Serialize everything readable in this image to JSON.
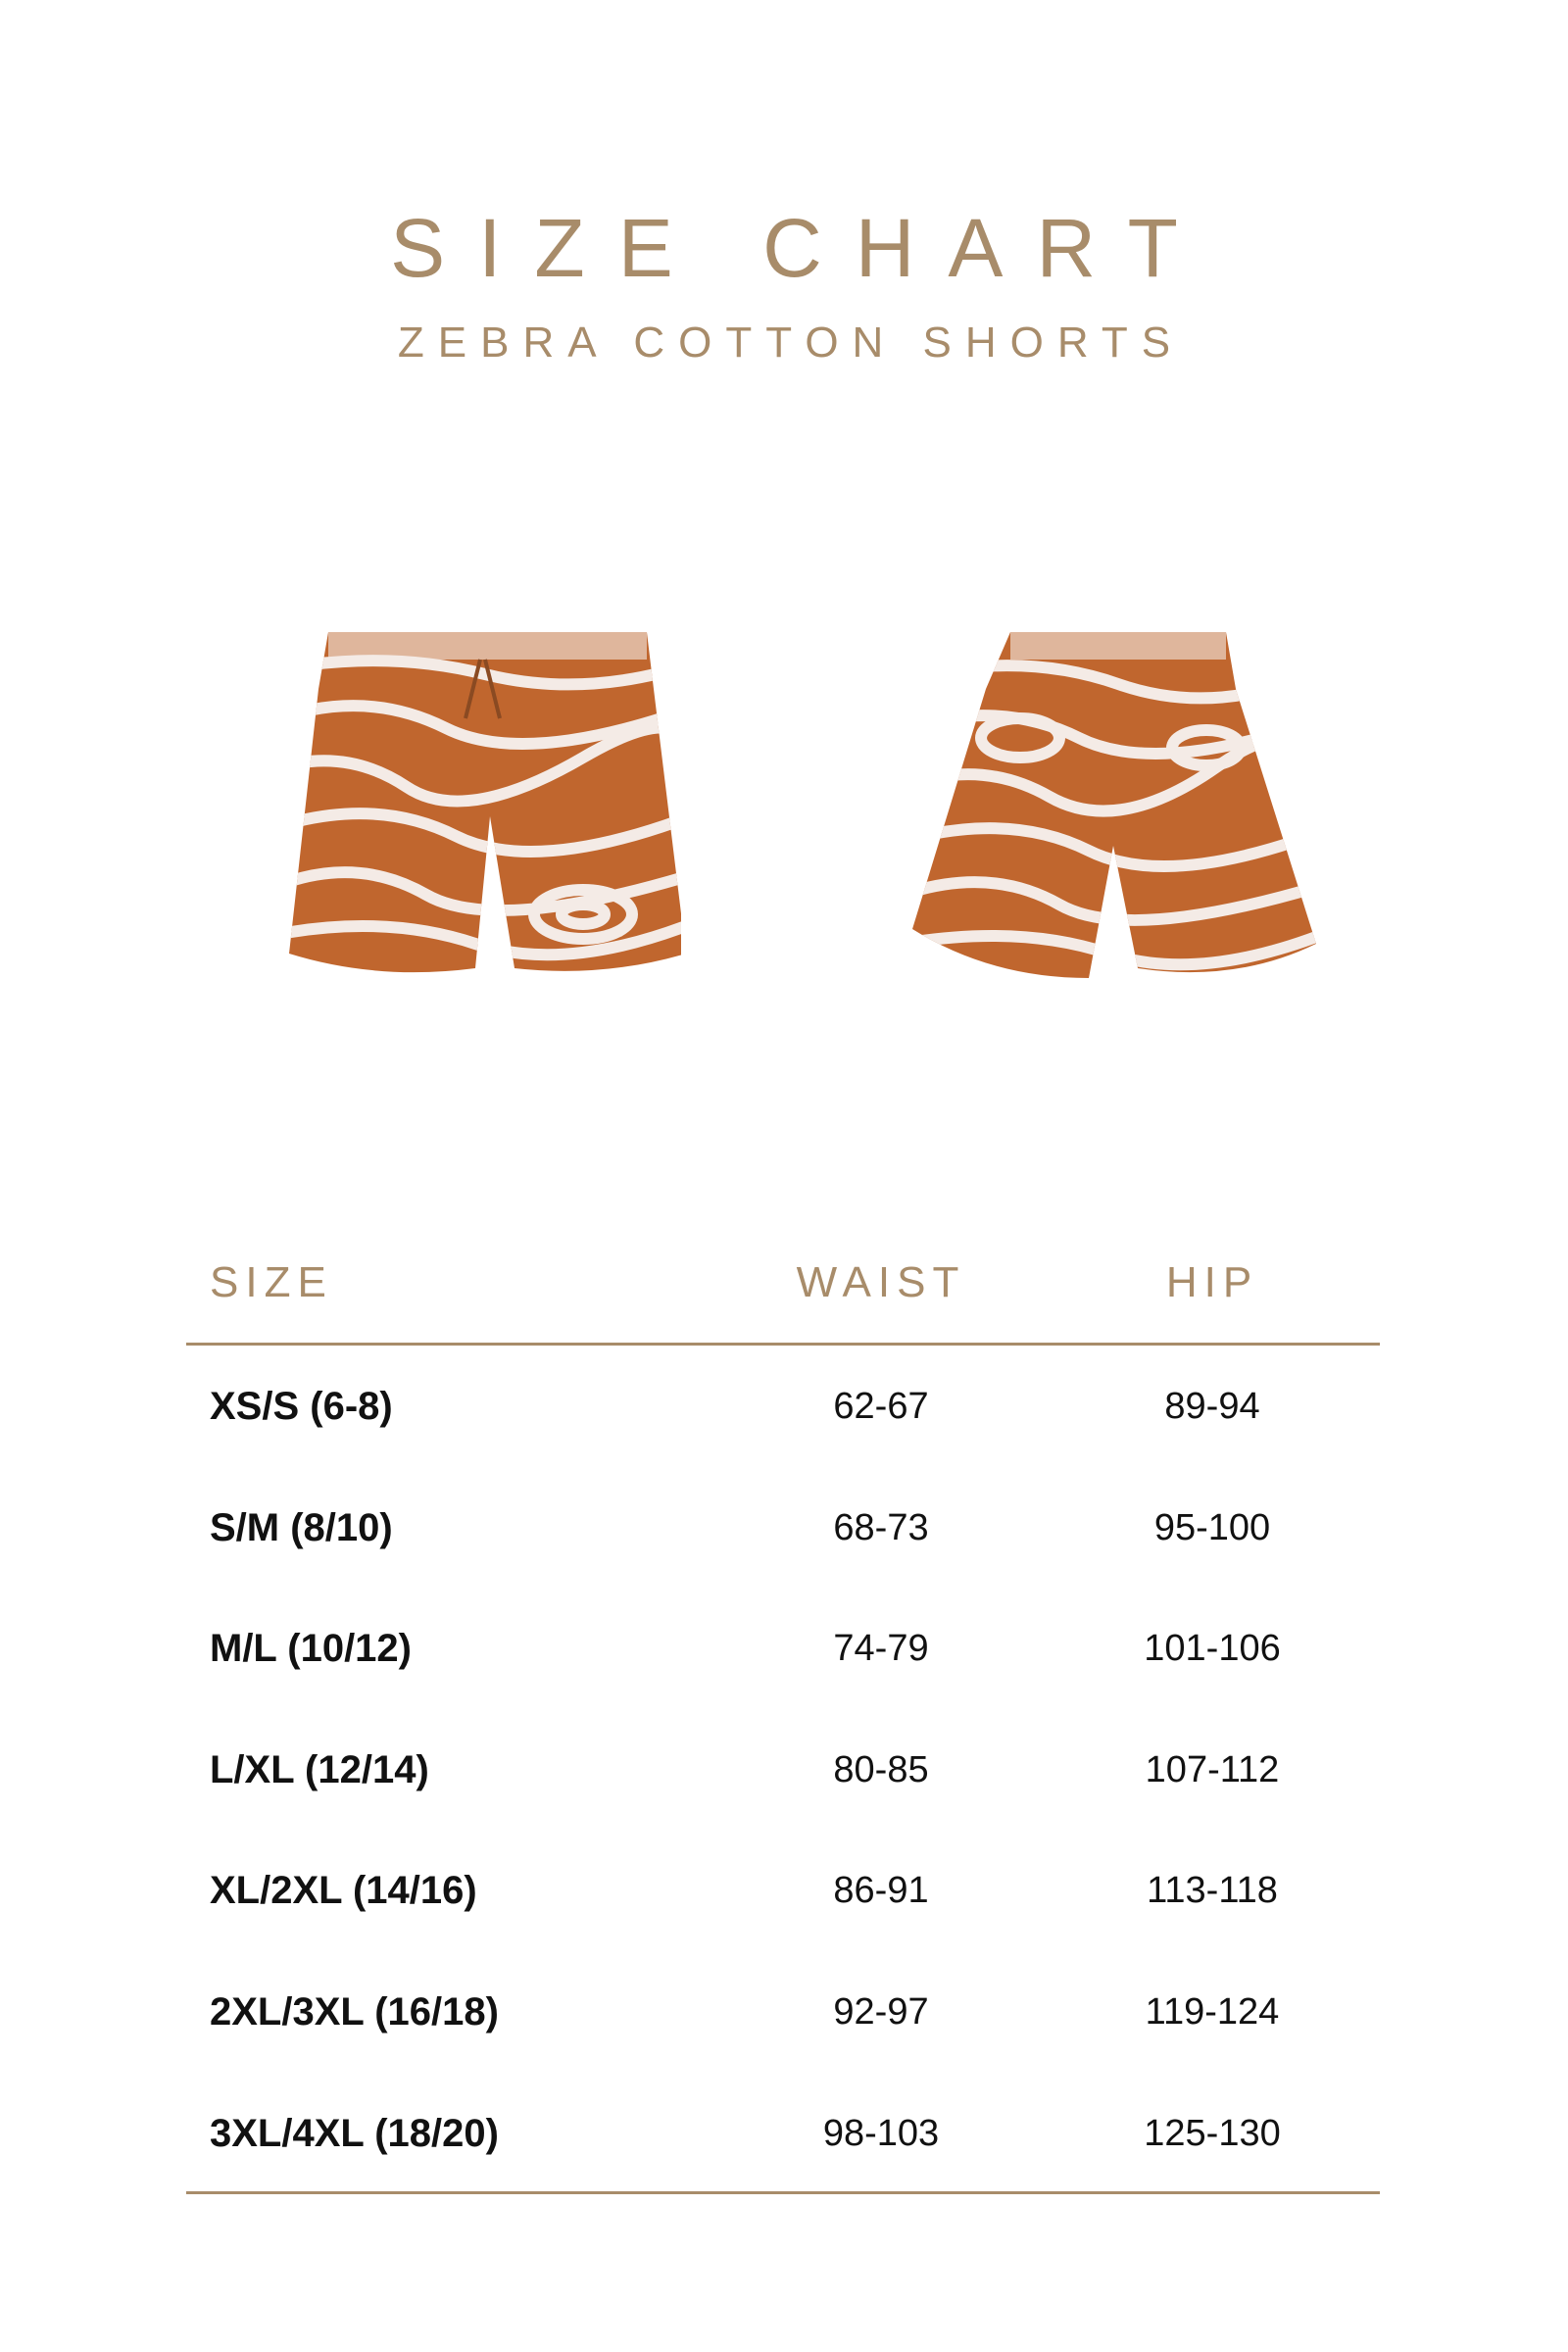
{
  "header": {
    "title": "SIZE CHART",
    "subtitle": "ZEBRA COTTON SHORTS"
  },
  "images": [
    {
      "label": "front-view"
    },
    {
      "label": "back-view"
    }
  ],
  "colors": {
    "accent": "#a88c6a",
    "print_base": "#c0662e",
    "print_stripe": "#f4ebe6"
  },
  "table": {
    "columns": [
      "SIZE",
      "WAIST",
      "HIP"
    ],
    "rows": [
      {
        "size": "XS/S  (6-8)",
        "waist": "62-67",
        "hip": "89-94"
      },
      {
        "size": "S/M (8/10)",
        "waist": "68-73",
        "hip": "95-100"
      },
      {
        "size": "M/L (10/12)",
        "waist": "74-79",
        "hip": "101-106"
      },
      {
        "size": "L/XL (12/14)",
        "waist": "80-85",
        "hip": "107-112"
      },
      {
        "size": "XL/2XL (14/16)",
        "waist": "86-91",
        "hip": "113-118"
      },
      {
        "size": "2XL/3XL (16/18)",
        "waist": "92-97",
        "hip": "119-124"
      },
      {
        "size": "3XL/4XL (18/20)",
        "waist": "98-103",
        "hip": "125-130"
      }
    ]
  }
}
